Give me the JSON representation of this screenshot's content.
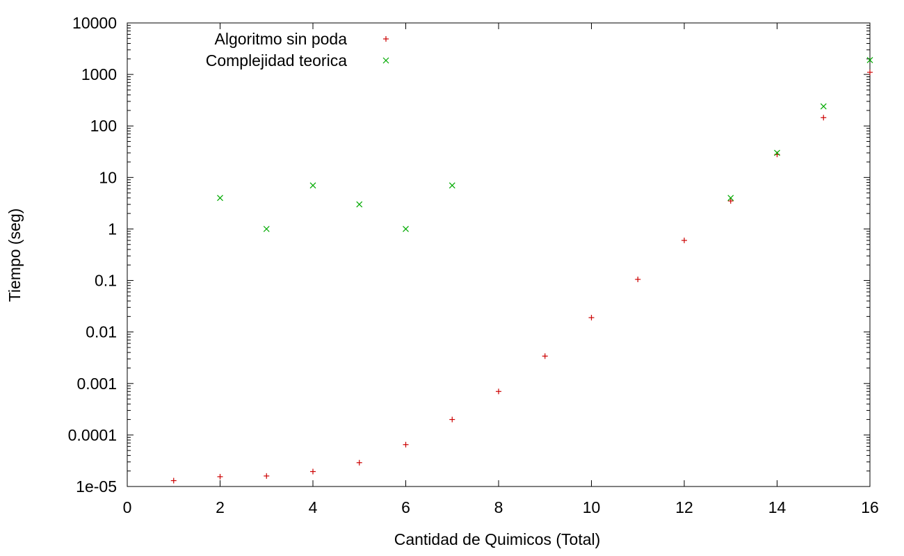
{
  "chart_data": {
    "type": "scatter",
    "title": "",
    "xlabel": "Cantidad de Quimicos (Total)",
    "ylabel": "Tiempo (seg)",
    "xlim": [
      0,
      16
    ],
    "ylim": [
      1e-05,
      10000
    ],
    "yscale": "log",
    "x_ticks": [
      0,
      2,
      4,
      6,
      8,
      10,
      12,
      14,
      16
    ],
    "x_tick_labels": [
      "0",
      "2",
      "4",
      "6",
      "8",
      "10",
      "12",
      "14",
      "16"
    ],
    "y_ticks": [
      1e-05,
      0.0001,
      0.001,
      0.01,
      0.1,
      1,
      10,
      100,
      1000,
      10000
    ],
    "y_tick_labels": [
      "1e-05",
      "0.0001",
      "0.001",
      "0.01",
      "0.1",
      "1",
      "10",
      "100",
      "1000",
      "10000"
    ],
    "grid": false,
    "legend_position": "top-left",
    "series": [
      {
        "name": "Algoritmo sin poda",
        "marker": "plus",
        "color": "#cc0000",
        "x": [
          1,
          2,
          3,
          4,
          5,
          6,
          7,
          8,
          9,
          10,
          11,
          12,
          13,
          14,
          15,
          16
        ],
        "y": [
          1.3e-05,
          1.55e-05,
          1.6e-05,
          1.95e-05,
          2.9e-05,
          6.5e-05,
          0.0002,
          0.0007,
          0.0034,
          0.019,
          0.105,
          0.6,
          3.5,
          28,
          145,
          1100
        ]
      },
      {
        "name": "Complejidad teorica",
        "marker": "cross",
        "color": "#00aa00",
        "x": [
          2,
          3,
          4,
          6,
          5,
          7,
          13,
          14,
          15,
          16
        ],
        "y": [
          4,
          1,
          7,
          1,
          3,
          7,
          4,
          30,
          240,
          1900
        ]
      }
    ]
  }
}
